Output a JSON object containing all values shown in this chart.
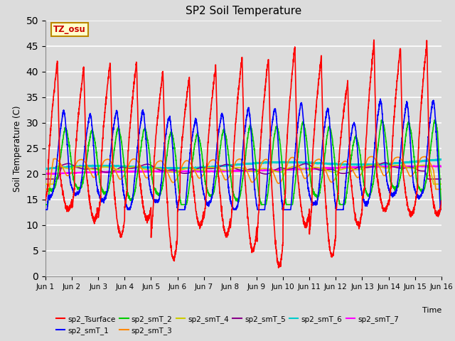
{
  "title": "SP2 Soil Temperature",
  "ylabel": "Soil Temperature (C)",
  "xlabel": "Time",
  "annotation": "TZ_osu",
  "annotation_color": "#cc0000",
  "annotation_bg": "#ffffcc",
  "annotation_border": "#bb8800",
  "ylim": [
    0,
    50
  ],
  "yticks": [
    0,
    5,
    10,
    15,
    20,
    25,
    30,
    35,
    40,
    45,
    50
  ],
  "x_end": 15,
  "n_points": 3000,
  "plot_bg": "#dcdcdc",
  "fig_bg": "#dcdcdc",
  "series_colors": {
    "sp2_Tsurface": "#ff0000",
    "sp2_smT_1": "#0000ff",
    "sp2_smT_2": "#00cc00",
    "sp2_smT_3": "#ff8800",
    "sp2_smT_4": "#cccc00",
    "sp2_smT_5": "#880088",
    "sp2_smT_6": "#00cccc",
    "sp2_smT_7": "#ff00ff"
  },
  "xtick_labels": [
    "Jun 1",
    "Jun 2",
    "Jun 3",
    "Jun 4",
    "Jun 5",
    "Jun 6",
    "Jun 7",
    "Jun 8",
    "Jun 9",
    "Jun 10",
    "Jun 11",
    "Jun 12",
    "Jun 13",
    "Jun 14",
    "Jun 15",
    "Jun 16"
  ],
  "xtick_positions": [
    0,
    1,
    2,
    3,
    4,
    5,
    6,
    7,
    8,
    9,
    10,
    11,
    12,
    13,
    14,
    15
  ]
}
